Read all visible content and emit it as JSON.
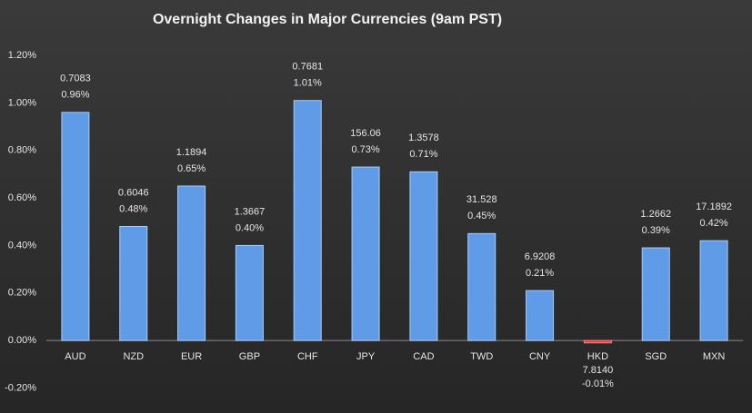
{
  "chart_data": {
    "type": "bar",
    "title": "Overnight Changes in Major Currencies (9am PST)",
    "categories": [
      "AUD",
      "NZD",
      "EUR",
      "GBP",
      "CHF",
      "JPY",
      "CAD",
      "TWD",
      "CNY",
      "HKD",
      "SGD",
      "MXN"
    ],
    "values": [
      0.96,
      0.48,
      0.65,
      0.4,
      1.01,
      0.73,
      0.71,
      0.45,
      0.21,
      -0.01,
      0.39,
      0.42
    ],
    "value_labels": [
      "0.96%",
      "0.48%",
      "0.65%",
      "0.40%",
      "1.01%",
      "0.73%",
      "0.71%",
      "0.45%",
      "0.21%",
      "-0.01%",
      "0.39%",
      "0.42%"
    ],
    "rates": [
      "0.7083",
      "0.6046",
      "1.1894",
      "1.3667",
      "0.7681",
      "156.06",
      "1.3578",
      "31.528",
      "6.9208",
      "7.8140",
      "1.2662",
      "17.1892"
    ],
    "color": "#5f9be6",
    "negative_color": "#e03a3a",
    "ylim": [
      -0.2,
      1.2
    ],
    "yticks": [
      {
        "value": -0.2,
        "label": "-0.20%"
      },
      {
        "value": 0,
        "label": "0.00%"
      },
      {
        "value": 0.2,
        "label": "0.20%"
      },
      {
        "value": 0.4,
        "label": "0.40%"
      },
      {
        "value": 0.6,
        "label": "0.60%"
      },
      {
        "value": 0.8,
        "label": "0.80%"
      },
      {
        "value": 1.0,
        "label": "1.00%"
      },
      {
        "value": 1.2,
        "label": "1.20%"
      }
    ],
    "grid": false
  }
}
